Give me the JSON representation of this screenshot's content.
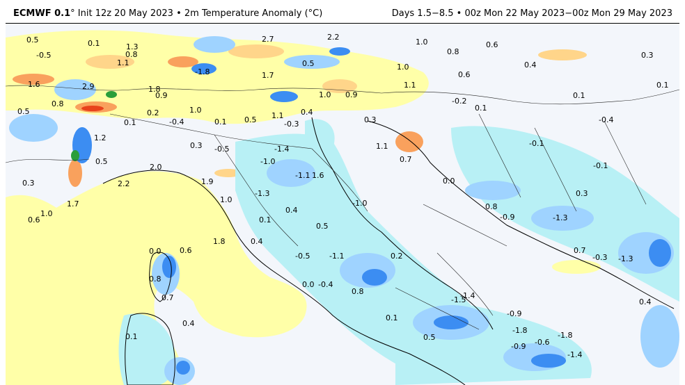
{
  "header": {
    "model": "ECMWF 0.1",
    "degree": "°",
    "init": " Init 12z 20 May 2023 • 2m Temperature Anomaly (°C)",
    "valid": "Days 1.5−8.5 • 00z Mon 22 May 2023−00z Mon 29 May 2023"
  },
  "colors": {
    "sea_background": "#f3f6fb",
    "cold_light": "#b8f0f5",
    "cold_mid": "#9fd3ff",
    "cold_strong": "#3c8df2",
    "neutral": "#f3f6fb",
    "warm_light": "#ffffa8",
    "warm_mid": "#ffd58a",
    "warm_strong": "#f9a15d",
    "hot": "#e8421c",
    "very_cold": "#2a9e3a"
  },
  "values": {
    "v01": "0.5",
    "v02": "-0.5",
    "v03": "0.1",
    "v04": "1.3",
    "v05": "0.8",
    "v06": "1.1",
    "v07": "2.7",
    "v08": "2.2",
    "v09": "1.0",
    "v10": "0.8",
    "v11": "0.6",
    "v12": "0.3",
    "v13": "0.4",
    "v14": "-1.8",
    "v15": "1.7",
    "v16": "0.5",
    "v17": "1.0",
    "v18": "0.6",
    "v19": "0.1",
    "v20": "0.1",
    "v21": "1.6",
    "v22": "2.9",
    "v23": "1.8",
    "v24": "0.9",
    "v25": "0.8",
    "v26": "0.5",
    "v27": "0.2",
    "v28": "1.0",
    "v29": "1.0",
    "v30": "0.9",
    "v31": "1.1",
    "v32": "-0.2",
    "v33": "0.1",
    "v34": "0.1",
    "v35": "-0.4",
    "v36": "0.1",
    "v37": "0.5",
    "v38": "1.1",
    "v39": "0.4",
    "v40": "-0.3",
    "v41": "0.3",
    "v42": "-0.4",
    "v43": "1.2",
    "v44": "0.3",
    "v45": "-0.5",
    "v46": "-1.4",
    "v47": "-0.1",
    "v48": "1.1",
    "v49": "-1.0",
    "v50": "0.5",
    "v51": "2.0",
    "v52": "-1.1",
    "v53": "1.6",
    "v54": "0.7",
    "v55": "-0.1",
    "v56": "0.3",
    "v57": "2.2",
    "v58": "1.9",
    "v59": "0.0",
    "v60": "1.7",
    "v61": "-1.3",
    "v62": "1.0",
    "v63": "0.3",
    "v64": "1.0",
    "v65": "-1.0",
    "v66": "0.4",
    "v67": "0.8",
    "v68": "0.6",
    "v69": "0.1",
    "v70": "-0.9",
    "v71": "-1.3",
    "v72": "0.5",
    "v73": "1.8",
    "v74": "0.4",
    "v75": "0.0",
    "v76": "0.6",
    "v77": "0.7",
    "v78": "-0.3",
    "v79": "-1.3",
    "v80": "-0.5",
    "v81": "-1.1",
    "v82": "0.2",
    "v83": "0.8",
    "v84": "0.0",
    "v85": "-0.4",
    "v86": "0.8",
    "v87": "0.7",
    "v88": "-1.5",
    "v89": "-1.4",
    "v90": "0.4",
    "v91": "-0.9",
    "v92": "0.1",
    "v93": "-1.8",
    "v94": "0.4",
    "v95": "-1.8",
    "v96": "0.5",
    "v97": "-0.9",
    "v98": "-0.6",
    "v99": "-1.4",
    "v100": "0.1"
  }
}
